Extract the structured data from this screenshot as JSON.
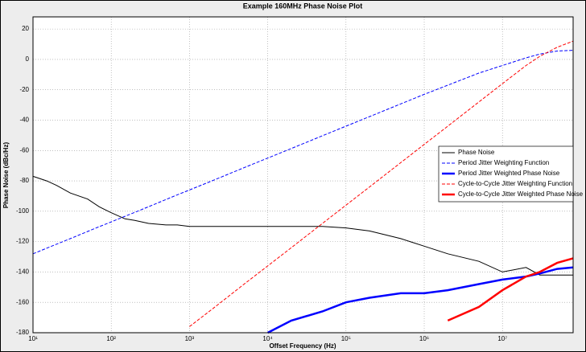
{
  "chart_data": {
    "type": "line",
    "title": "Example 160MHz Phase Noise Plot",
    "x_label": "Offset Frequency (Hz)",
    "y_label": "Phase Noise (dBc/Hz)",
    "x_scale": "log",
    "grid": true,
    "legend_position": "right",
    "x": [
      10,
      15,
      20,
      30,
      50,
      70,
      100,
      150,
      200,
      300,
      500,
      700,
      1000,
      2000,
      5000,
      10000,
      20000,
      50000,
      100000,
      200000,
      500000,
      1000000,
      2000000,
      5000000,
      10000000,
      20000000,
      30000000,
      50000000,
      80000000
    ],
    "xlim": [
      10,
      80000000
    ],
    "xticks": [
      {
        "value": 10,
        "label": "10¹"
      },
      {
        "value": 100,
        "label": "10²"
      },
      {
        "value": 1000,
        "label": "10³"
      },
      {
        "value": 10000,
        "label": "10⁴"
      },
      {
        "value": 100000,
        "label": "10⁵"
      },
      {
        "value": 1000000,
        "label": "10⁶"
      },
      {
        "value": 10000000,
        "label": "10⁷"
      }
    ],
    "ylim": [
      -180,
      28
    ],
    "yticks": [
      20,
      0,
      -20,
      -40,
      -60,
      -80,
      -100,
      -120,
      -140,
      -160,
      -180
    ],
    "series": [
      {
        "name": "Phase Noise",
        "color": "#000000",
        "dashed": false,
        "width": 1,
        "values": [
          -77,
          -80,
          -83,
          -88,
          -92,
          -97,
          -101,
          -105,
          -106,
          -108,
          -109,
          -109,
          -110,
          -110,
          -110,
          -110,
          -110,
          -110,
          -111,
          -113,
          -118,
          -123,
          -128,
          -133,
          -140,
          -137,
          -142,
          -142,
          -142
        ]
      },
      {
        "name": "Period Jitter Weighting Function",
        "color": "#0000ff",
        "dashed": true,
        "width": 1,
        "values": [
          -128,
          -124.3,
          -121.7,
          -118,
          -113.3,
          -110.2,
          -107,
          -103.3,
          -100.7,
          -97,
          -92.3,
          -89.2,
          -86,
          -79.7,
          -71.3,
          -65,
          -58.7,
          -50.3,
          -44,
          -37.7,
          -29.3,
          -23,
          -17,
          -9,
          -4,
          1,
          3.5,
          5.5,
          6
        ]
      },
      {
        "name": "Period Jitter Weighted Phase Noise",
        "color": "#0000ff",
        "dashed": false,
        "width": 2.5,
        "values": [
          null,
          null,
          null,
          null,
          null,
          null,
          null,
          null,
          null,
          null,
          null,
          null,
          null,
          null,
          null,
          -180,
          -172,
          -166,
          -160,
          -157,
          -154,
          -154,
          -152,
          -148,
          -145,
          -143,
          -141,
          -138,
          -137
        ]
      },
      {
        "name": "Cycle-to-Cycle Jitter Weighting Function",
        "color": "#ff0000",
        "dashed": true,
        "width": 1,
        "values": [
          null,
          null,
          null,
          null,
          null,
          null,
          null,
          null,
          null,
          null,
          null,
          null,
          -176,
          -164,
          -148,
          -136,
          -124,
          -108,
          -96,
          -84,
          -68,
          -56,
          -44,
          -28,
          -16,
          -4,
          2,
          8,
          12
        ]
      },
      {
        "name": "Cycle-to-Cycle Jitter Weighted Phase Noise",
        "color": "#ff0000",
        "dashed": false,
        "width": 2.5,
        "values": [
          null,
          null,
          null,
          null,
          null,
          null,
          null,
          null,
          null,
          null,
          null,
          null,
          null,
          null,
          null,
          null,
          null,
          null,
          null,
          null,
          null,
          null,
          -172,
          -163,
          -152,
          -143,
          -140,
          -134,
          -131
        ]
      }
    ]
  }
}
